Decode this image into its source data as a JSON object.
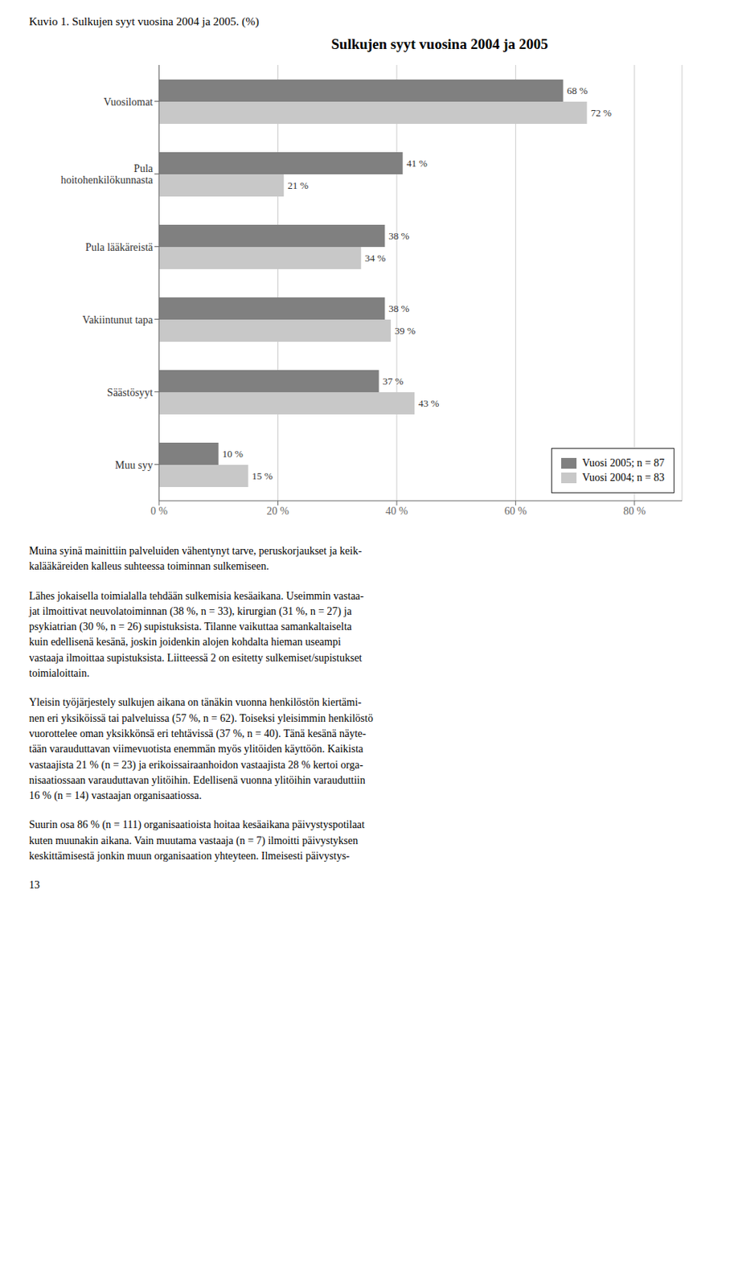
{
  "chart_data": {
    "type": "bar",
    "orientation": "horizontal",
    "title": "Sulkujen syyt vuosina 2004 ja 2005",
    "subtitle": "Kuvio 1. Sulkujen syyt vuosina 2004 ja 2005. (%)",
    "categories": [
      "Vuosilomat",
      "Pula\nhoitohenkilökunnasta",
      "Pula lääkäreistä",
      "Vakiintunut tapa",
      "Säästösyyt",
      "Muu syy"
    ],
    "series": [
      {
        "name": "Vuosi 2005; n = 87",
        "color": "#808080",
        "values": [
          68,
          41,
          38,
          38,
          37,
          10
        ],
        "value_labels": [
          "68 %",
          "41 %",
          "38 %",
          "38 %",
          "37 %",
          "10 %"
        ]
      },
      {
        "name": "Vuosi 2004; n = 83",
        "color": "#c8c8c8",
        "values": [
          72,
          21,
          34,
          39,
          43,
          15
        ],
        "value_labels": [
          "72 %",
          "21 %",
          "34 %",
          "39 %",
          "43 %",
          "15 %"
        ]
      }
    ],
    "xlim": [
      0,
      88
    ],
    "xticks": [
      {
        "value": 0,
        "label": "0 %"
      },
      {
        "value": 20,
        "label": "20 %"
      },
      {
        "value": 40,
        "label": "40 %"
      },
      {
        "value": 60,
        "label": "60 %"
      },
      {
        "value": 80,
        "label": "80 %"
      }
    ],
    "grid": true,
    "legend": "lower right",
    "data_labels": true,
    "annotations": [
      "Muina syinä mainittiin palveluiden vähentynyt tarve, peruskorjaukset ja keik-\nkalääkäreiden kalleus suhteessa toiminnan sulkemiseen.",
      "Lähes jokaisella toimialalla tehdään sulkemisia kesäaikana. Useimmin vastaa-\njat ilmoittivat neuvolatoiminnan (38 %, n = 33), kirurgian (31 %, n = 27) ja\npsykiatrian (30 %, n = 26) supistuksista. Tilanne vaikuttaa samankaltaiselta\nkuin edellisenä kesänä, joskin joidenkin alojen kohdalta hieman useampi\nvastaaja ilmoittaa supistuksista. Liitteessä 2 on esitetty sulkemiset/supistukset\ntoimialoittain.",
      "Yleisin työjärjestely sulkujen aikana on tänäkin vuonna henkilöstön kiertämi-\nnen eri yksiköissä tai palveluissa (57 %, n = 62). Toiseksi yleisimmin henkilöstö\nvuorottelee oman yksikkönsä eri tehtävissä (37 %, n = 40). Tänä kesänä näyte-\ntään varauduttavan viimevuotista enemmän myös ylitöiden käyttöön. Kaikista\nvastaajista 21 % (n = 23) ja erikoissairaanhoidon vastaajista 28 % kertoi orga-\nnisaatiossaan varauduttavan ylitöihin. Edellisenä vuonna ylitöihin varauduttiin\n16 % (n = 14) vastaajan organisaatiossa.",
      "Suurin osa 86 % (n = 111) organisaatioista hoitaa kesäaikana päivystyspotilaat\nkuten muunakin aikana. Vain muutama vastaaja (n = 7) ilmoitti päivystyksen\nkeskittämisestä jonkin muun organisaation yhteyteen. Ilmeisesti päivystys-",
      "13"
    ]
  }
}
